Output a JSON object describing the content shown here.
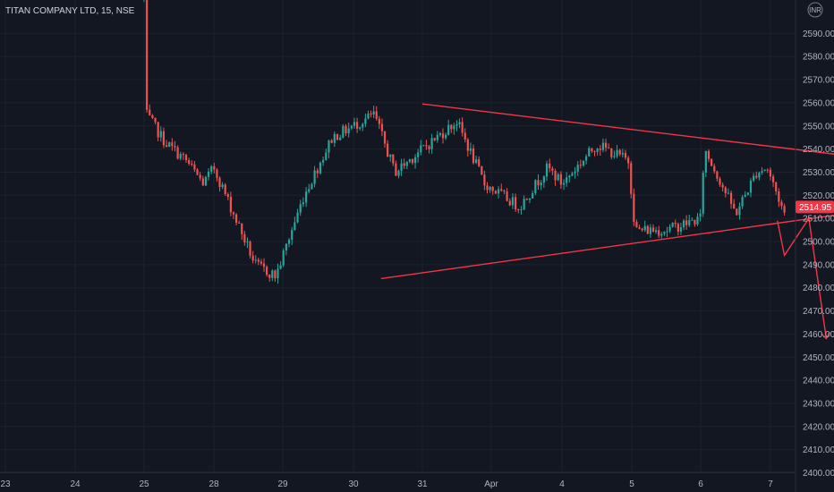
{
  "chart_data": {
    "type": "candlestick",
    "title": "TITAN COMPANY LTD, 15, NSE",
    "currency_badge": "INR",
    "current_price_label": "2514.95",
    "colors": {
      "up": "#26a69a",
      "down": "#ef5350",
      "drawing": "#f23645",
      "background": "#131722",
      "text": "#b2b5be"
    },
    "y_axis": {
      "range": [
        2400,
        2600
      ],
      "ticks": [
        "2590.00",
        "2580.00",
        "2570.00",
        "2560.00",
        "2550.00",
        "2540.00",
        "2530.00",
        "2520.00",
        "2510.00",
        "2500.00",
        "2490.00",
        "2480.00",
        "2470.00",
        "2460.00",
        "2450.00",
        "2440.00",
        "2430.00",
        "2420.00",
        "2410.00",
        "2400.00"
      ]
    },
    "x_axis": {
      "ticks": [
        "23",
        "24",
        "25",
        "28",
        "29",
        "30",
        "31",
        "Apr",
        "4",
        "5",
        "6",
        "7"
      ]
    },
    "keypoints": [
      {
        "x": 25,
        "y": 2605
      },
      {
        "x": 25.03,
        "y": 2555
      },
      {
        "x": 25.3,
        "y": 2543
      },
      {
        "x": 25.6,
        "y": 2535
      },
      {
        "x": 25.85,
        "y": 2525
      },
      {
        "x": 26,
        "y": 2532
      },
      {
        "x": 26.6,
        "y": 2490
      },
      {
        "x": 26.9,
        "y": 2485
      },
      {
        "x": 27.3,
        "y": 2520
      },
      {
        "x": 27.7,
        "y": 2545
      },
      {
        "x": 28.3,
        "y": 2555
      },
      {
        "x": 28.6,
        "y": 2530
      },
      {
        "x": 29.0,
        "y": 2540
      },
      {
        "x": 29.5,
        "y": 2552
      },
      {
        "x": 29.9,
        "y": 2525
      },
      {
        "x": 30.4,
        "y": 2515
      },
      {
        "x": 30.8,
        "y": 2532
      },
      {
        "x": 31.0,
        "y": 2525
      },
      {
        "x": 31.5,
        "y": 2542
      },
      {
        "x": 31.95,
        "y": 2535
      },
      {
        "x": 32.05,
        "y": 2505
      },
      {
        "x": 32.5,
        "y": 2505
      },
      {
        "x": 33.0,
        "y": 2510
      },
      {
        "x": 33.05,
        "y": 2540
      },
      {
        "x": 33.3,
        "y": 2525
      },
      {
        "x": 33.5,
        "y": 2512
      },
      {
        "x": 33.8,
        "y": 2530
      },
      {
        "x": 33.95,
        "y": 2532
      },
      {
        "x": 34.2,
        "y": 2512
      }
    ],
    "candle_count": 230,
    "drawings": [
      {
        "type": "line",
        "name": "upper-trendline",
        "points": [
          {
            "x": 29.0,
            "y": 2559.5
          },
          {
            "x": 35.0,
            "y": 2537.5
          }
        ]
      },
      {
        "type": "line",
        "name": "lower-trendline",
        "points": [
          {
            "x": 28.4,
            "y": 2484
          },
          {
            "x": 35.3,
            "y": 2513
          }
        ]
      },
      {
        "type": "polyline",
        "name": "projection-path",
        "points": [
          {
            "x": 34.1,
            "y": 2509
          },
          {
            "x": 34.2,
            "y": 2494
          },
          {
            "x": 34.55,
            "y": 2510
          },
          {
            "x": 34.8,
            "y": 2458
          }
        ]
      }
    ]
  }
}
